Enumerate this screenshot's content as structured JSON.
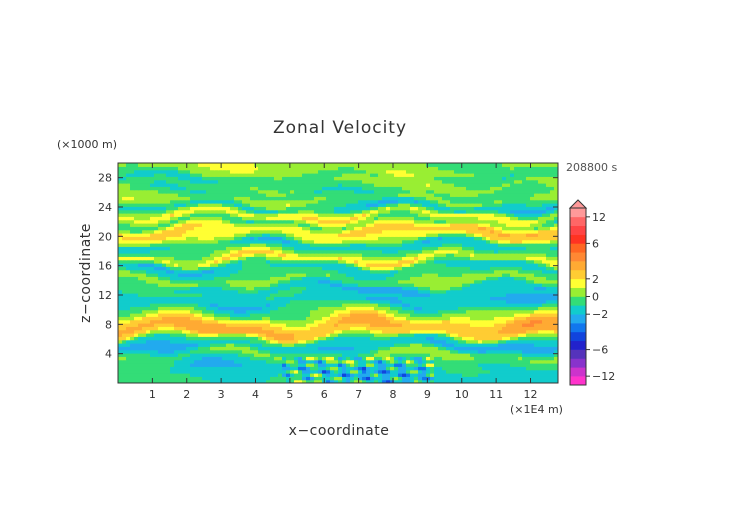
{
  "chart_data": {
    "type": "heatmap",
    "title": "Zonal Velocity",
    "xlabel": "x−coordinate",
    "ylabel": "z−coordinate",
    "x_unit": "(×1E4 m)",
    "y_unit": "(×1000 m)",
    "time_label": "208800 s",
    "xlim": [
      0,
      12.8
    ],
    "ylim": [
      0,
      30
    ],
    "x_ticks": [
      1,
      2,
      3,
      4,
      5,
      6,
      7,
      8,
      9,
      10,
      11,
      12
    ],
    "y_ticks": [
      4,
      8,
      12,
      16,
      20,
      24,
      28
    ],
    "colorbar": {
      "ticks": [
        {
          "value": 12,
          "label": "12"
        },
        {
          "value": 6,
          "label": "6"
        },
        {
          "value": 2,
          "label": "2"
        },
        {
          "value": 0,
          "label": "0"
        },
        {
          "value": -2,
          "label": "−2"
        },
        {
          "value": -6,
          "label": "−6"
        },
        {
          "value": -12,
          "label": "−12"
        }
      ],
      "levels": [
        -14,
        -12,
        -10,
        -8,
        -6,
        -5,
        -4,
        -3,
        -2,
        -1,
        0,
        1,
        2,
        3,
        4,
        5,
        6,
        8,
        10,
        12,
        14
      ],
      "colors": [
        "#ff33cc",
        "#cc33cc",
        "#8833cc",
        "#5533bb",
        "#2222cc",
        "#1144dd",
        "#1177ee",
        "#22aaee",
        "#11cccc",
        "#33dd77",
        "#99ee33",
        "#ffff33",
        "#ffcc33",
        "#ffaa33",
        "#ff8833",
        "#ff6622",
        "#ff3322",
        "#ff4444",
        "#ff6666",
        "#ff9999"
      ],
      "extend": "max"
    },
    "bands": [
      {
        "z": 1.0,
        "u": -1.2
      },
      {
        "z": 2.0,
        "u": -1.6
      },
      {
        "z": 3.0,
        "u": -1.0
      },
      {
        "z": 4.0,
        "u": 0.2
      },
      {
        "z": 5.0,
        "u": -2.2
      },
      {
        "z": 6.0,
        "u": -1.0
      },
      {
        "z": 6.8,
        "u": 2.6
      },
      {
        "z": 7.6,
        "u": 3.4
      },
      {
        "z": 8.4,
        "u": 2.6
      },
      {
        "z": 9.2,
        "u": 0.8
      },
      {
        "z": 10.0,
        "u": -0.4
      },
      {
        "z": 11.0,
        "u": -2.0
      },
      {
        "z": 12.0,
        "u": -1.2
      },
      {
        "z": 13.0,
        "u": -1.8
      },
      {
        "z": 14.0,
        "u": 0.6
      },
      {
        "z": 15.0,
        "u": -0.8
      },
      {
        "z": 16.0,
        "u": -1.6
      },
      {
        "z": 17.0,
        "u": 2.0
      },
      {
        "z": 18.0,
        "u": -0.4
      },
      {
        "z": 19.0,
        "u": -1.6
      },
      {
        "z": 20.0,
        "u": 1.6
      },
      {
        "z": 21.0,
        "u": 2.4
      },
      {
        "z": 22.0,
        "u": -0.6
      },
      {
        "z": 23.0,
        "u": 1.8
      },
      {
        "z": 24.0,
        "u": -1.8
      },
      {
        "z": 25.0,
        "u": 0.4
      },
      {
        "z": 26.0,
        "u": -0.6
      },
      {
        "z": 27.0,
        "u": 0.2
      },
      {
        "z": 28.0,
        "u": -0.8
      },
      {
        "z": 29.0,
        "u": 0.4
      }
    ]
  }
}
